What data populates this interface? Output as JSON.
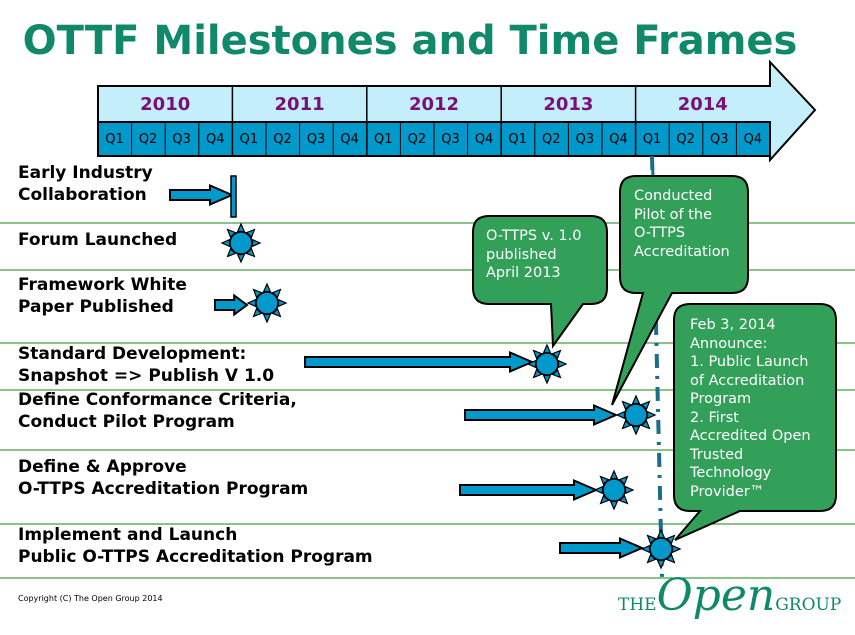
{
  "title": "OTTF Milestones and Time Frames",
  "years": [
    "2010",
    "2011",
    "2012",
    "2013",
    "2014"
  ],
  "quarters": [
    "Q1",
    "Q2",
    "Q3",
    "Q4"
  ],
  "rows": [
    {
      "line1": "Early Industry",
      "line2": "Collaboration"
    },
    {
      "line1": "Forum Launched",
      "line2": ""
    },
    {
      "line1": "Framework White",
      "line2": "Paper Published"
    },
    {
      "line1": "Standard Development:",
      "line2": "Snapshot => Publish V 1.0"
    },
    {
      "line1": "Define Conformance Criteria,",
      "line2": "Conduct Pilot Program"
    },
    {
      "line1": "Define & Approve",
      "line2": "O-TTPS Accreditation Program"
    },
    {
      "line1": "Implement and Launch",
      "line2": "Public O-TTPS Accreditation Program"
    }
  ],
  "callouts": [
    {
      "text": "O-TTPS v. 1.0\npublished\nApril 2013"
    },
    {
      "text": "Conducted\nPilot of the\nO-TTPS\nAccreditation"
    },
    {
      "text": "Feb 3, 2014\nAnnounce:\n1. Public Launch\nof Accreditation\nProgram\n2. First\nAccredited Open\nTrusted\nTechnology\nProvider™"
    }
  ],
  "copyright": "Copyright (C) The Open Group 2014",
  "logo": {
    "the": "THE",
    "open": "Open",
    "group": "GROUP"
  },
  "colors": {
    "title": "#10896a",
    "year_row": "#c5eefb",
    "quarter_row": "#0099cc",
    "year_text": "#7a0f7a",
    "callout": "#33a05a",
    "arrow": "#0099cc",
    "row_line": "#118811"
  }
}
